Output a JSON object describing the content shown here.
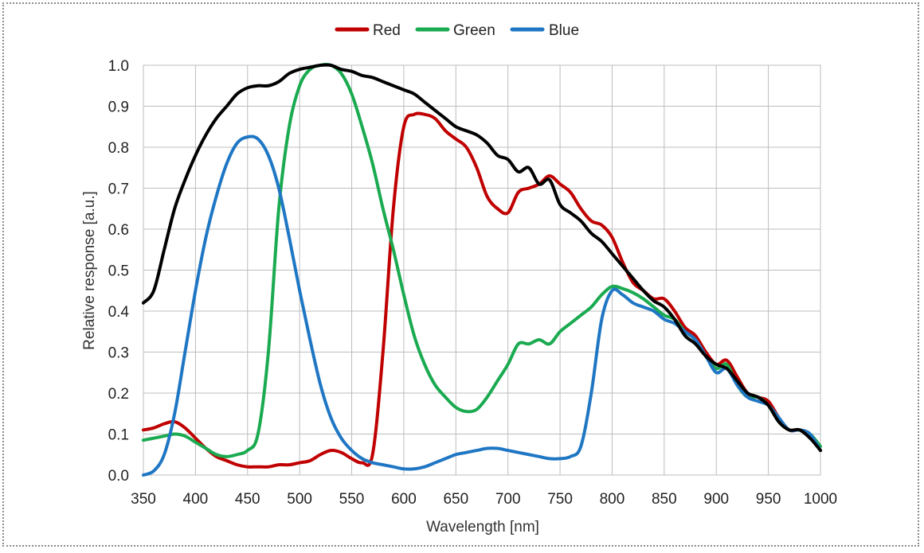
{
  "chart_data": {
    "type": "line",
    "title": "",
    "xlabel": "Wavelength [nm]",
    "ylabel": "Relative response [a.u.]",
    "xlim": [
      350,
      1000
    ],
    "ylim": [
      0,
      1.0
    ],
    "xticks": [
      "350",
      "400",
      "450",
      "500",
      "550",
      "600",
      "650",
      "700",
      "750",
      "800",
      "850",
      "900",
      "950",
      "1000"
    ],
    "yticks": [
      "0.0",
      "0.1",
      "0.2",
      "0.3",
      "0.4",
      "0.5",
      "0.6",
      "0.7",
      "0.8",
      "0.9",
      "1.0"
    ],
    "grid": true,
    "legend_position": "top-center",
    "series": [
      {
        "name": "Red",
        "color": "#c00000",
        "x": [
          350,
          360,
          370,
          380,
          390,
          400,
          410,
          420,
          430,
          440,
          450,
          460,
          470,
          480,
          490,
          500,
          510,
          520,
          530,
          540,
          550,
          560,
          570,
          580,
          590,
          600,
          610,
          620,
          630,
          640,
          650,
          660,
          670,
          680,
          690,
          700,
          710,
          720,
          730,
          740,
          750,
          760,
          770,
          780,
          790,
          800,
          810,
          820,
          830,
          840,
          850,
          860,
          870,
          880,
          890,
          900,
          910,
          920,
          930,
          940,
          950,
          960,
          970,
          980,
          990,
          1000
        ],
        "y": [
          0.11,
          0.115,
          0.125,
          0.13,
          0.115,
          0.09,
          0.065,
          0.045,
          0.035,
          0.025,
          0.02,
          0.02,
          0.02,
          0.025,
          0.025,
          0.03,
          0.035,
          0.05,
          0.06,
          0.055,
          0.04,
          0.03,
          0.05,
          0.3,
          0.65,
          0.85,
          0.88,
          0.88,
          0.87,
          0.84,
          0.82,
          0.8,
          0.75,
          0.68,
          0.65,
          0.64,
          0.69,
          0.7,
          0.71,
          0.73,
          0.71,
          0.69,
          0.65,
          0.62,
          0.61,
          0.58,
          0.52,
          0.47,
          0.45,
          0.43,
          0.43,
          0.4,
          0.36,
          0.34,
          0.3,
          0.27,
          0.28,
          0.24,
          0.2,
          0.19,
          0.18,
          0.14,
          0.11,
          0.11,
          0.1,
          0.06
        ]
      },
      {
        "name": "Green",
        "color": "#1aaa50",
        "x": [
          350,
          360,
          370,
          380,
          390,
          400,
          410,
          420,
          430,
          440,
          450,
          460,
          470,
          480,
          490,
          500,
          510,
          520,
          530,
          540,
          550,
          560,
          570,
          580,
          590,
          600,
          610,
          620,
          630,
          640,
          650,
          660,
          670,
          680,
          690,
          700,
          710,
          720,
          730,
          740,
          750,
          760,
          770,
          780,
          790,
          800,
          810,
          820,
          830,
          840,
          850,
          860,
          870,
          880,
          890,
          900,
          910,
          920,
          930,
          940,
          950,
          960,
          970,
          980,
          990,
          1000
        ],
        "y": [
          0.085,
          0.09,
          0.095,
          0.1,
          0.095,
          0.08,
          0.065,
          0.05,
          0.045,
          0.05,
          0.06,
          0.1,
          0.3,
          0.65,
          0.85,
          0.95,
          0.99,
          1.0,
          1.0,
          0.98,
          0.93,
          0.85,
          0.76,
          0.65,
          0.55,
          0.44,
          0.34,
          0.27,
          0.22,
          0.19,
          0.165,
          0.155,
          0.16,
          0.19,
          0.23,
          0.27,
          0.32,
          0.32,
          0.33,
          0.32,
          0.35,
          0.37,
          0.39,
          0.41,
          0.44,
          0.46,
          0.455,
          0.445,
          0.43,
          0.41,
          0.39,
          0.38,
          0.35,
          0.33,
          0.29,
          0.26,
          0.27,
          0.22,
          0.19,
          0.19,
          0.17,
          0.13,
          0.11,
          0.11,
          0.1,
          0.07
        ]
      },
      {
        "name": "Blue",
        "color": "#1f77c4",
        "x": [
          350,
          360,
          370,
          380,
          390,
          400,
          410,
          420,
          430,
          440,
          450,
          460,
          470,
          480,
          490,
          500,
          510,
          520,
          530,
          540,
          550,
          560,
          570,
          580,
          590,
          600,
          610,
          620,
          630,
          640,
          650,
          660,
          670,
          680,
          690,
          700,
          710,
          720,
          730,
          740,
          750,
          760,
          770,
          780,
          790,
          800,
          810,
          820,
          830,
          840,
          850,
          860,
          870,
          880,
          890,
          900,
          910,
          920,
          930,
          940,
          950,
          960,
          970,
          980,
          990,
          1000
        ],
        "y": [
          0.0,
          0.01,
          0.05,
          0.15,
          0.3,
          0.45,
          0.58,
          0.68,
          0.76,
          0.81,
          0.825,
          0.82,
          0.78,
          0.7,
          0.58,
          0.45,
          0.33,
          0.22,
          0.14,
          0.09,
          0.06,
          0.04,
          0.03,
          0.025,
          0.02,
          0.015,
          0.015,
          0.02,
          0.03,
          0.04,
          0.05,
          0.055,
          0.06,
          0.065,
          0.065,
          0.06,
          0.055,
          0.05,
          0.045,
          0.04,
          0.04,
          0.045,
          0.07,
          0.2,
          0.38,
          0.45,
          0.44,
          0.42,
          0.41,
          0.4,
          0.38,
          0.37,
          0.35,
          0.33,
          0.29,
          0.25,
          0.26,
          0.22,
          0.19,
          0.18,
          0.17,
          0.14,
          0.11,
          0.11,
          0.1,
          0.06
        ]
      },
      {
        "name": "",
        "color": "#000000",
        "x": [
          350,
          360,
          370,
          380,
          390,
          400,
          410,
          420,
          430,
          440,
          450,
          460,
          470,
          480,
          490,
          500,
          510,
          520,
          530,
          540,
          550,
          560,
          570,
          580,
          590,
          600,
          610,
          620,
          630,
          640,
          650,
          660,
          670,
          680,
          690,
          700,
          710,
          720,
          730,
          740,
          750,
          760,
          770,
          780,
          790,
          800,
          810,
          820,
          830,
          840,
          850,
          860,
          870,
          880,
          890,
          900,
          910,
          920,
          930,
          940,
          950,
          960,
          970,
          980,
          990,
          1000
        ],
        "y": [
          0.42,
          0.45,
          0.55,
          0.65,
          0.72,
          0.78,
          0.83,
          0.87,
          0.9,
          0.93,
          0.945,
          0.95,
          0.95,
          0.96,
          0.98,
          0.99,
          0.995,
          1.0,
          1.0,
          0.99,
          0.985,
          0.975,
          0.97,
          0.96,
          0.95,
          0.94,
          0.93,
          0.91,
          0.89,
          0.87,
          0.85,
          0.84,
          0.83,
          0.81,
          0.78,
          0.77,
          0.74,
          0.75,
          0.71,
          0.72,
          0.66,
          0.64,
          0.62,
          0.59,
          0.57,
          0.54,
          0.51,
          0.48,
          0.45,
          0.425,
          0.41,
          0.38,
          0.34,
          0.32,
          0.29,
          0.27,
          0.26,
          0.23,
          0.2,
          0.19,
          0.17,
          0.13,
          0.11,
          0.11,
          0.09,
          0.06
        ]
      }
    ]
  }
}
